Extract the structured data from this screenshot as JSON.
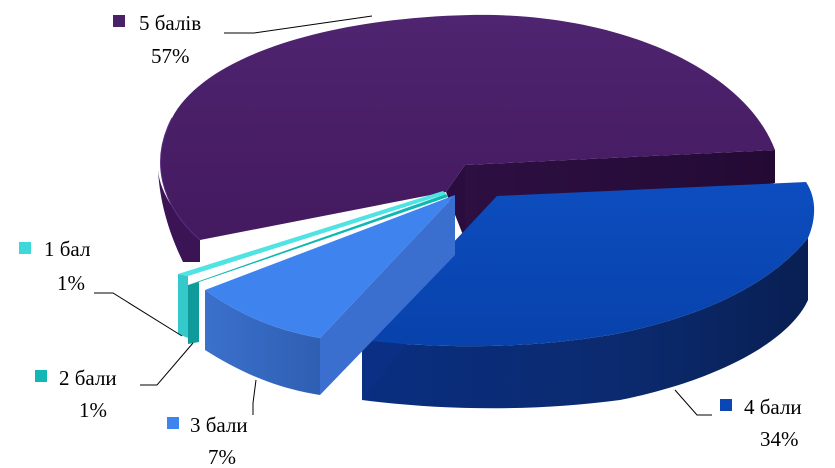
{
  "chart_data": {
    "type": "pie",
    "style": "3d-exploded",
    "title": "",
    "categories": [
      "5 балів",
      "4 бали",
      "3 бали",
      "2 бали",
      "1 бал"
    ],
    "values": [
      57,
      34,
      7,
      1,
      1
    ],
    "value_labels": [
      "57%",
      "34%",
      "7%",
      "1%",
      "1%"
    ],
    "colors": [
      "#4a2168",
      "#0a47b5",
      "#3f82ec",
      "#10b7b4",
      "#3fd8d8"
    ],
    "legend": "none (labels beside slices)"
  }
}
